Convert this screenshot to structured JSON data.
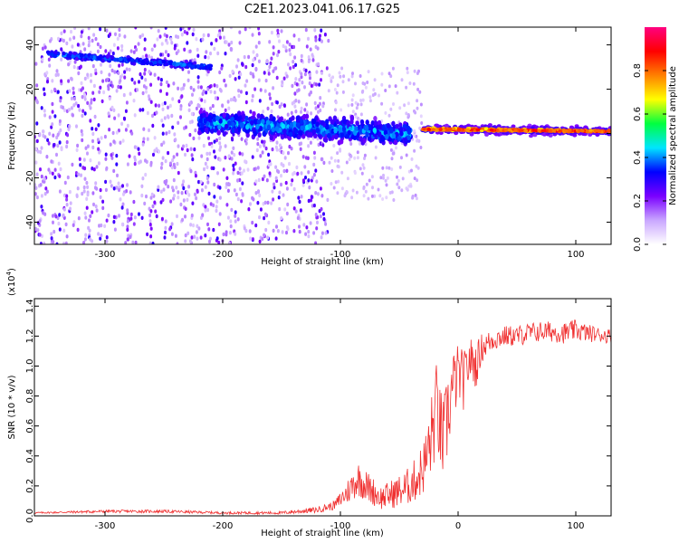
{
  "title": "C2E1.2023.041.06.17.G25",
  "chart_data": [
    {
      "type": "heatmap",
      "title": "C2E1.2023.041.06.17.G25",
      "xlabel": "Height of straight line (km)",
      "ylabel": "Frequency (Hz)",
      "xlim": [
        -360,
        130
      ],
      "ylim": [
        -50,
        48
      ],
      "x_ticks": [
        -300,
        -200,
        -100,
        0,
        100
      ],
      "y_ticks": [
        -40,
        -20,
        0,
        20,
        40
      ],
      "colorbar": {
        "label": "Normalized spectral amplitude",
        "range": [
          0.0,
          1.0
        ],
        "ticks": [
          0.0,
          0.2,
          0.4,
          0.6,
          0.8
        ],
        "colormap": [
          "#ffffff",
          "#c9a6ff",
          "#7a00ff",
          "#0000ff",
          "#00e5ff",
          "#00ff40",
          "#ffff00",
          "#ff8000",
          "#ff0000",
          "#ff0080"
        ]
      },
      "features": [
        {
          "name": "upper-line",
          "x_range": [
            -350,
            -210
          ],
          "freq_start": 36,
          "freq_end": 30,
          "amplitude": 0.3
        },
        {
          "name": "main-trace",
          "x_range": [
            -220,
            -40
          ],
          "freq_start": 5,
          "freq_end": 0,
          "amplitude": 0.35
        },
        {
          "name": "strong-trace",
          "x_range": [
            -30,
            130
          ],
          "freq_start": 2,
          "freq_end": 1,
          "amplitude": 0.85
        },
        {
          "name": "noise-region",
          "x_range": [
            -360,
            -110
          ],
          "freq_range": [
            -50,
            48
          ],
          "amplitude": 0.1
        }
      ]
    },
    {
      "type": "line",
      "xlabel": "Height of straight line (km)",
      "ylabel": "SNR (10 * v/v)",
      "y_multiplier": "(x10",
      "y_multiplier_exp": "4",
      "y_multiplier_close": ")",
      "xlim": [
        -360,
        130
      ],
      "ylim": [
        0.0,
        1.45
      ],
      "x_ticks": [
        -300,
        -200,
        -100,
        0,
        100
      ],
      "y_ticks": [
        0.0,
        0.2,
        0.4,
        0.6,
        0.8,
        1.0,
        1.2,
        1.4
      ],
      "color": "#f03030",
      "series": [
        {
          "x": [
            -360,
            -300,
            -250,
            -200,
            -150,
            -120,
            -105,
            -95,
            -85,
            -75,
            -65,
            -55,
            -45,
            -35,
            -28,
            -22,
            -18,
            -15,
            -12,
            -8,
            -5,
            0,
            5,
            10,
            15,
            20,
            25,
            30,
            40,
            50,
            60,
            70,
            80,
            90,
            100,
            110,
            120,
            130
          ],
          "y": [
            0.02,
            0.03,
            0.03,
            0.02,
            0.02,
            0.04,
            0.07,
            0.15,
            0.25,
            0.18,
            0.12,
            0.15,
            0.18,
            0.25,
            0.35,
            0.55,
            0.75,
            0.55,
            0.5,
            0.72,
            0.85,
            0.95,
            0.9,
            1.05,
            1.0,
            1.12,
            1.15,
            1.18,
            1.2,
            1.2,
            1.22,
            1.23,
            1.23,
            1.22,
            1.24,
            1.22,
            1.21,
            1.2
          ],
          "noise": [
            0.005,
            0.01,
            0.01,
            0.008,
            0.01,
            0.02,
            0.03,
            0.08,
            0.12,
            0.1,
            0.08,
            0.1,
            0.12,
            0.15,
            0.2,
            0.3,
            0.3,
            0.3,
            0.3,
            0.3,
            0.25,
            0.2,
            0.2,
            0.15,
            0.15,
            0.1,
            0.08,
            0.08,
            0.07,
            0.07,
            0.07,
            0.07,
            0.07,
            0.07,
            0.07,
            0.06,
            0.05,
            0.05
          ]
        }
      ]
    }
  ]
}
